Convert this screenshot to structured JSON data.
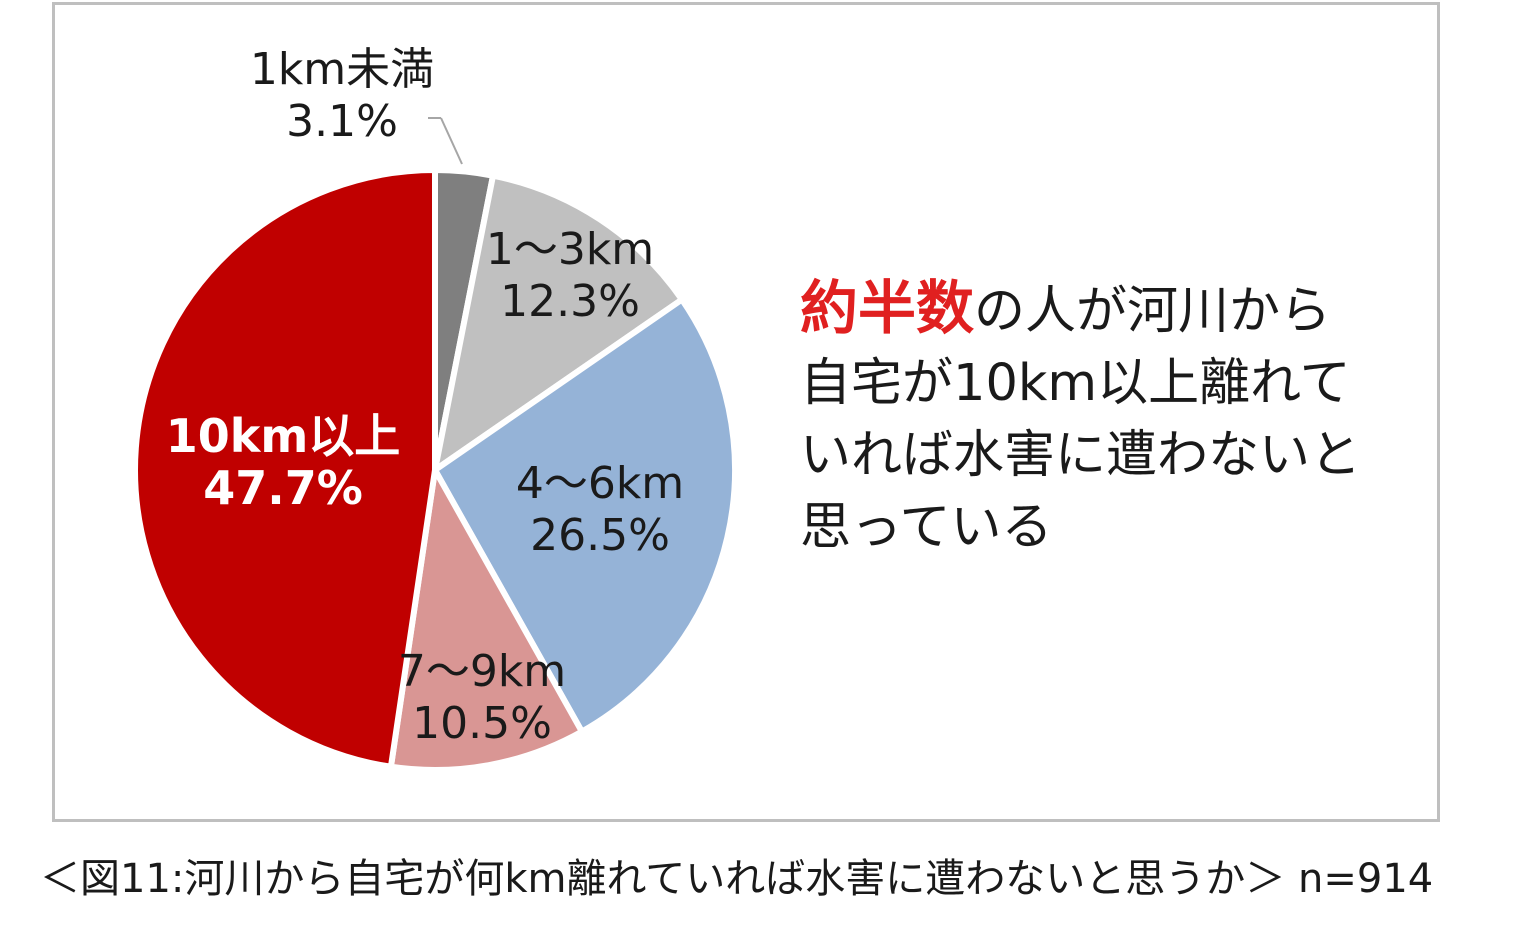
{
  "chart_data": {
    "type": "pie",
    "categories": [
      "1km未満",
      "1〜3km",
      "4〜6km",
      "7〜9km",
      "10km以上"
    ],
    "values": [
      3.1,
      12.3,
      26.5,
      10.5,
      47.7
    ],
    "value_labels": [
      "3.1%",
      "12.3%",
      "26.5%",
      "10.5%",
      "47.7%"
    ],
    "colors": [
      "#7f7f7f",
      "#c0c0c0",
      "#95b3d7",
      "#d99694",
      "#c00000"
    ],
    "start": "12 o'clock",
    "direction": "clockwise",
    "legend": "none",
    "title": ""
  },
  "callout": {
    "highlight": "約半数",
    "text_1": "の人が河川から",
    "text_2": "自宅が10km以上離れて",
    "text_3": "いれば水害に遭わないと",
    "text_4": "思っている",
    "highlight_color": "#e02020"
  },
  "caption": "＜図11:河川から自宅が何km離れていれば水害に遭わないと思うか＞ n=914"
}
